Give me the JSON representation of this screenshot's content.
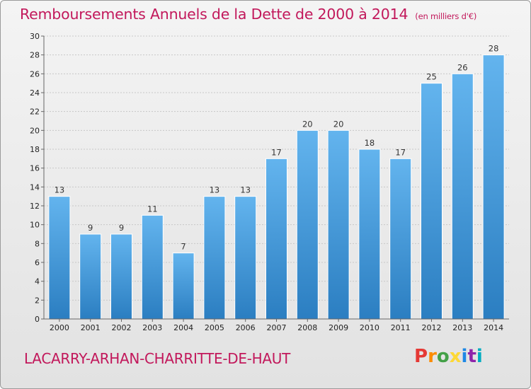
{
  "title": {
    "main": "Remboursements Annuels de la Dette de 2000 à 2014",
    "unit": "(en milliers d'€)"
  },
  "commune": "LACARRY-ARHAN-CHARRITTE-DE-HAUT",
  "logo": {
    "letters": [
      "P",
      "r",
      "o",
      "x",
      "i",
      "t",
      "i"
    ],
    "colors": [
      "#e53935",
      "#fb8c00",
      "#43a047",
      "#fdd835",
      "#1e88e5",
      "#8e24aa",
      "#00acc1"
    ]
  },
  "colors": {
    "bar_top": "#63b4ee",
    "bar_bottom": "#2b7ec1",
    "title": "#c2185b"
  },
  "chart_data": {
    "type": "bar",
    "title": "Remboursements Annuels de la Dette de 2000 à 2014",
    "ylabel": "en milliers d'€",
    "xlabel": "",
    "categories": [
      "2000",
      "2001",
      "2002",
      "2003",
      "2004",
      "2005",
      "2006",
      "2007",
      "2008",
      "2009",
      "2010",
      "2011",
      "2012",
      "2013",
      "2014"
    ],
    "values": [
      13,
      9,
      9,
      11,
      7,
      13,
      13,
      17,
      20,
      20,
      18,
      17,
      25,
      26,
      28
    ],
    "ylim": [
      0,
      30
    ],
    "yticks": [
      "0",
      "2",
      "4",
      "6",
      "8",
      "10",
      "12",
      "14",
      "16",
      "18",
      "20",
      "22",
      "24",
      "26",
      "28",
      "30"
    ],
    "grid": true,
    "legend": "none"
  }
}
